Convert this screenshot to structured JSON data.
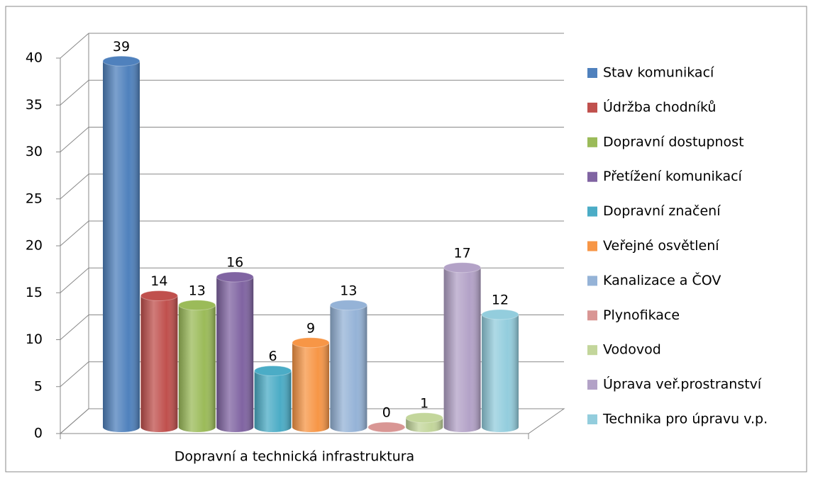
{
  "chart_data": {
    "type": "bar",
    "categories": [
      "Dopravní a technická infrastruktura"
    ],
    "series": [
      {
        "name": "Stav komunikací",
        "color": "#4f81bd",
        "values": [
          39
        ]
      },
      {
        "name": "Údržba chodníků",
        "color": "#c0504d",
        "values": [
          14
        ]
      },
      {
        "name": "Dopravní dostupnost",
        "color": "#9bbb59",
        "values": [
          13
        ]
      },
      {
        "name": "Přetížení komunikací",
        "color": "#8064a2",
        "values": [
          16
        ]
      },
      {
        "name": "Dopravní značení",
        "color": "#4bacc6",
        "values": [
          6
        ]
      },
      {
        "name": "Veřejné osvětlení",
        "color": "#f79646",
        "values": [
          9
        ]
      },
      {
        "name": "Kanalizace a ČOV",
        "color": "#95b3d7",
        "values": [
          13
        ]
      },
      {
        "name": "Plynofikace",
        "color": "#d99694",
        "values": [
          0
        ]
      },
      {
        "name": "Vodovod",
        "color": "#c3d69b",
        "values": [
          1
        ]
      },
      {
        "name": "Úprava veř.prostranství",
        "color": "#b3a2c7",
        "values": [
          17
        ]
      },
      {
        "name": "Technika pro úpravu v.p.",
        "color": "#93cddd",
        "values": [
          12
        ]
      }
    ],
    "ylim": [
      0,
      40
    ],
    "yticks": [
      0,
      5,
      10,
      15,
      20,
      25,
      30,
      35,
      40
    ],
    "grid": true,
    "legend": "right"
  }
}
